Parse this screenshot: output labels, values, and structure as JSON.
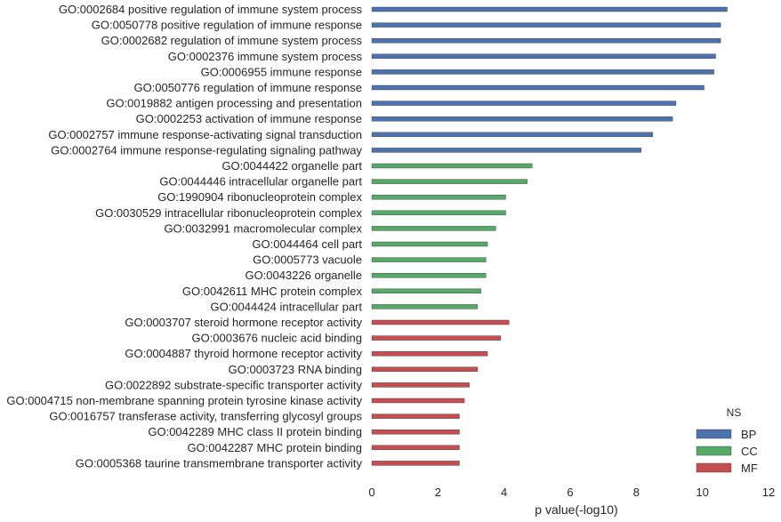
{
  "chart_data": {
    "type": "bar",
    "orientation": "horizontal",
    "xlabel": "p value(-log10)",
    "xlim": [
      0,
      12
    ],
    "xticks": [
      "0",
      "2",
      "4",
      "6",
      "8",
      "10",
      "12"
    ],
    "grid": false,
    "legend": {
      "title": "NS",
      "placement": "bottom-right",
      "entries": [
        {
          "key": "BP",
          "label": "BP",
          "color": "#4c72b0"
        },
        {
          "key": "CC",
          "label": "CC",
          "color": "#55a868"
        },
        {
          "key": "MF",
          "label": "MF",
          "color": "#c44e52"
        }
      ]
    },
    "categories": [
      {
        "label": "GO:0002684 positive regulation of immune system process",
        "value": 10.75,
        "ns": "BP"
      },
      {
        "label": "GO:0050778 positive regulation of immune response",
        "value": 10.55,
        "ns": "BP"
      },
      {
        "label": "GO:0002682 regulation of immune system process",
        "value": 10.55,
        "ns": "BP"
      },
      {
        "label": "GO:0002376 immune system process",
        "value": 10.4,
        "ns": "BP"
      },
      {
        "label": "GO:0006955 immune response",
        "value": 10.35,
        "ns": "BP"
      },
      {
        "label": "GO:0050776 regulation of immune response",
        "value": 10.05,
        "ns": "BP"
      },
      {
        "label": "GO:0019882 antigen processing and presentation",
        "value": 9.2,
        "ns": "BP"
      },
      {
        "label": "GO:0002253 activation of immune response",
        "value": 9.1,
        "ns": "BP"
      },
      {
        "label": "GO:0002757 immune response-activating signal transduction",
        "value": 8.5,
        "ns": "BP"
      },
      {
        "label": "GO:0002764 immune response-regulating signaling pathway",
        "value": 8.15,
        "ns": "BP"
      },
      {
        "label": "GO:0044422 organelle part",
        "value": 4.85,
        "ns": "CC"
      },
      {
        "label": "GO:0044446 intracellular organelle part",
        "value": 4.7,
        "ns": "CC"
      },
      {
        "label": "GO:1990904 ribonucleoprotein complex",
        "value": 4.05,
        "ns": "CC"
      },
      {
        "label": "GO:0030529 intracellular ribonucleoprotein complex",
        "value": 4.05,
        "ns": "CC"
      },
      {
        "label": "GO:0032991 macromolecular complex",
        "value": 3.75,
        "ns": "CC"
      },
      {
        "label": "GO:0044464 cell part",
        "value": 3.5,
        "ns": "CC"
      },
      {
        "label": "GO:0005773 vacuole",
        "value": 3.45,
        "ns": "CC"
      },
      {
        "label": "GO:0043226 organelle",
        "value": 3.45,
        "ns": "CC"
      },
      {
        "label": "GO:0042611 MHC protein complex",
        "value": 3.3,
        "ns": "CC"
      },
      {
        "label": "GO:0044424 intracellular part",
        "value": 3.2,
        "ns": "CC"
      },
      {
        "label": "GO:0003707 steroid hormone receptor activity",
        "value": 4.15,
        "ns": "MF"
      },
      {
        "label": "GO:0003676 nucleic acid binding",
        "value": 3.9,
        "ns": "MF"
      },
      {
        "label": "GO:0004887 thyroid hormone receptor activity",
        "value": 3.5,
        "ns": "MF"
      },
      {
        "label": "GO:0003723 RNA binding",
        "value": 3.2,
        "ns": "MF"
      },
      {
        "label": "GO:0022892 substrate-specific transporter activity",
        "value": 2.95,
        "ns": "MF"
      },
      {
        "label": "GO:0004715 non-membrane spanning protein tyrosine kinase activity",
        "value": 2.8,
        "ns": "MF"
      },
      {
        "label": "GO:0016757 transferase activity, transferring glycosyl groups",
        "value": 2.65,
        "ns": "MF"
      },
      {
        "label": "GO:0042289 MHC class II protein binding",
        "value": 2.65,
        "ns": "MF"
      },
      {
        "label": "GO:0042287 MHC protein binding",
        "value": 2.65,
        "ns": "MF"
      },
      {
        "label": "GO:0005368 taurine transmembrane transporter activity",
        "value": 2.65,
        "ns": "MF"
      }
    ]
  }
}
